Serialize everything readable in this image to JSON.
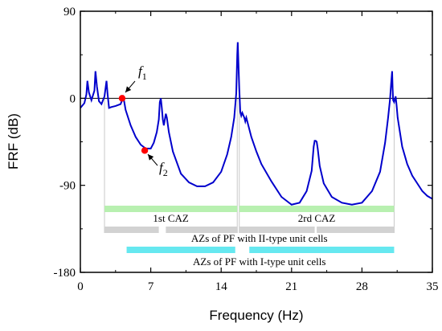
{
  "chart_data": {
    "type": "line",
    "xlabel": "Frequency (Hz)",
    "ylabel": "FRF (dB)",
    "xlim": [
      0,
      35
    ],
    "ylim": [
      -180,
      90
    ],
    "x_ticks": [
      0,
      7,
      14,
      21,
      28,
      35
    ],
    "y_ticks": [
      90,
      0,
      -90,
      -180
    ],
    "x_tick_labels": [
      "0",
      "7",
      "14",
      "21",
      "28",
      "35"
    ],
    "y_tick_labels": [
      "90",
      "0",
      "-90",
      "-180"
    ],
    "zero_line": true,
    "series": [
      {
        "color": "#0000cc",
        "x": [
          0.0,
          0.4,
          0.6,
          0.7,
          0.85,
          1.1,
          1.4,
          1.5,
          1.65,
          1.85,
          2.1,
          2.4,
          2.6,
          2.7,
          2.85,
          3.1,
          3.5,
          4.0,
          4.15,
          4.25,
          4.35,
          4.5,
          5.0,
          5.5,
          6.0,
          6.5,
          7.0,
          7.3,
          7.6,
          7.8,
          7.9,
          8.0,
          8.1,
          8.2,
          8.3,
          8.4,
          8.5,
          8.6,
          8.8,
          9.2,
          10.0,
          10.8,
          11.6,
          12.4,
          13.2,
          14.0,
          14.6,
          15.0,
          15.3,
          15.5,
          15.6,
          15.65,
          15.7,
          15.8,
          15.9,
          16.0,
          16.1,
          16.3,
          16.4,
          16.5,
          16.7,
          17.0,
          17.5,
          18.0,
          19.0,
          20.0,
          21.0,
          21.8,
          22.5,
          23.0,
          23.2,
          23.3,
          23.4,
          23.5,
          23.6,
          23.8,
          24.2,
          25.0,
          26.0,
          27.0,
          28.0,
          29.0,
          29.8,
          30.3,
          30.6,
          30.8,
          30.9,
          31.0,
          31.05,
          31.1,
          31.2,
          31.35,
          31.45,
          31.55,
          31.7,
          32.0,
          32.5,
          33.0,
          33.5,
          34.0,
          34.5,
          35.0
        ],
        "y": [
          -10,
          -5,
          4,
          18,
          6,
          -2,
          8,
          28,
          12,
          -3,
          -6,
          2,
          18,
          5,
          -10,
          -9,
          -8,
          -6,
          -2,
          1,
          -3,
          -12,
          -28,
          -40,
          -48,
          -52,
          -52,
          -46,
          -35,
          -22,
          -4,
          0,
          -10,
          -22,
          -28,
          -22,
          -16,
          -20,
          -35,
          -55,
          -78,
          -87,
          -91,
          -91,
          -87,
          -76,
          -58,
          -40,
          -20,
          5,
          45,
          58,
          42,
          10,
          -14,
          -18,
          -15,
          -20,
          -24,
          -20,
          -28,
          -40,
          -55,
          -68,
          -86,
          -102,
          -110,
          -108,
          -96,
          -75,
          -50,
          -44,
          -44,
          -45,
          -52,
          -70,
          -88,
          -102,
          -108,
          -110,
          -108,
          -96,
          -76,
          -46,
          -20,
          0,
          15,
          28,
          10,
          -2,
          -4,
          2,
          -8,
          -20,
          -30,
          -50,
          -68,
          -80,
          -88,
          -96,
          -101,
          -104
        ]
      }
    ],
    "markers": [
      {
        "label": "f1",
        "x": 4.15,
        "y": 0,
        "color": "#ff0000"
      },
      {
        "label": "f2",
        "x": 6.4,
        "y": -54,
        "color": "#ff0000"
      }
    ],
    "bands": [
      {
        "label": "1st CAZ",
        "color": "#b8f0b0",
        "segments": [
          [
            2.4,
            15.6
          ]
        ]
      },
      {
        "label": "2rd CAZ",
        "color": "#b8f0b0",
        "segments": [
          [
            15.8,
            31.2
          ]
        ]
      },
      {
        "label": "AZs of PF with II-type unit cells",
        "color": "#d2d2d2",
        "segments": [
          [
            2.4,
            7.8
          ],
          [
            8.5,
            15.6
          ],
          [
            15.8,
            23.3
          ],
          [
            23.5,
            31.2
          ]
        ]
      },
      {
        "label": "AZs of PF with I-type unit cells",
        "color": "#66e8f0",
        "segments": [
          [
            4.6,
            15.4
          ],
          [
            16.8,
            31.2
          ]
        ]
      }
    ],
    "band_guides_x": [
      2.4,
      15.6,
      15.8,
      31.2
    ]
  }
}
